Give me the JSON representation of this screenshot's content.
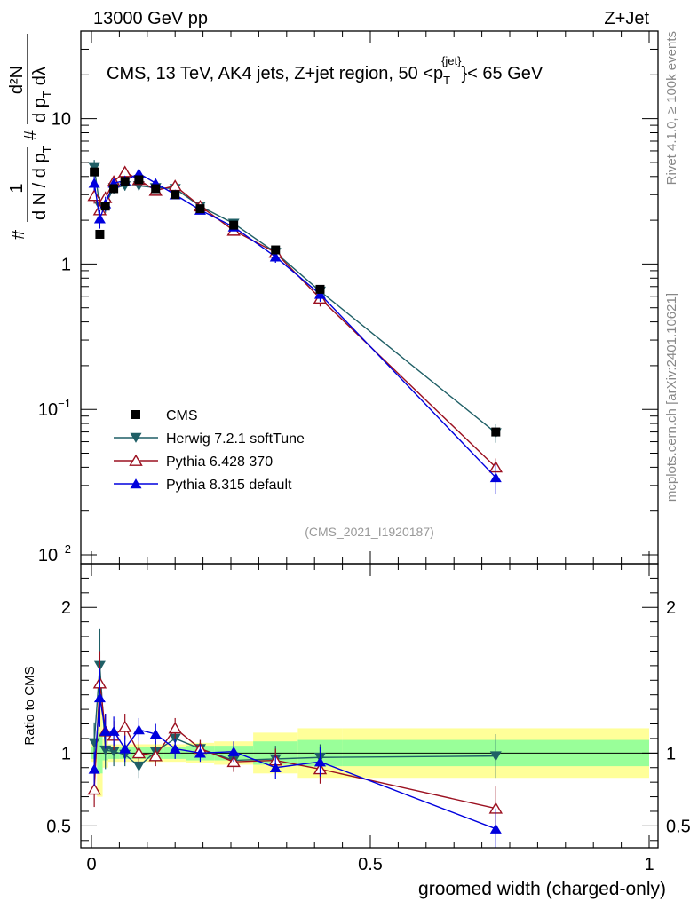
{
  "header": {
    "left": "13000 GeV pp",
    "right": "Z+Jet"
  },
  "side_labels": {
    "rivet": "Rivet 4.1.0, ≥ 100k events",
    "mcplots": "mcplots.cern.ch [arXiv:2401.10621]"
  },
  "colors": {
    "cms": "#000000",
    "herwig": "#1f5f66",
    "pythia6": "#9b1020",
    "pythia8": "#0000dd",
    "band_inner": "#99ff99",
    "band_outer": "#ffff99"
  },
  "chart_data": {
    "type": "line",
    "title": "CMS, 13 TeV, AK4 jets, Z+jet region, 50 <p_T^{jet}< 65 GeV",
    "title_parts": {
      "pre": "CMS, 13 TeV, AK4 jets, Z+jet region, 50 <p",
      "sup": "{jet}",
      "sub": "T",
      "post": "}< 65 GeV"
    },
    "ylabel_main": "1/dN/dpT # d2N/dpT dλ",
    "ylabel_parts": [
      "#",
      "1",
      "d N / d p",
      "T",
      "#",
      "d²N",
      "d p",
      "T",
      "dλ"
    ],
    "ylabel_ratio": "Ratio to CMS",
    "xlabel": "groomed width (charged-only)",
    "analysis_id": "(CMS_2021_I1920187)",
    "xlim": [
      0,
      1
    ],
    "ylim_main_log": [
      0.01,
      40
    ],
    "ylim_ratio": [
      0.35,
      2.3
    ],
    "x_ticks": [
      {
        "v": 0,
        "label": "0"
      },
      {
        "v": 0.5,
        "label": "0.5"
      },
      {
        "v": 1,
        "label": "1"
      }
    ],
    "y_ticks_main": [
      {
        "v": 10,
        "base": "10",
        "exp": ""
      },
      {
        "v": 1,
        "base": "1",
        "exp": ""
      },
      {
        "v": 0.1,
        "base": "10",
        "exp": "−1"
      },
      {
        "v": 0.01,
        "base": "10",
        "exp": "−2"
      }
    ],
    "y_ticks_ratio": [
      {
        "v": 2,
        "label": "2"
      },
      {
        "v": 1,
        "label": "1"
      },
      {
        "v": 0.5,
        "label": "0.5"
      }
    ],
    "legend": [
      {
        "key": "cms",
        "label": "CMS",
        "marker": "square"
      },
      {
        "key": "herwig",
        "label": "Herwig 7.2.1 softTune",
        "marker": "triangle-down"
      },
      {
        "key": "pythia6",
        "label": "Pythia 6.428 370",
        "marker": "triangle-open"
      },
      {
        "key": "pythia8",
        "label": "Pythia 8.315 default",
        "marker": "triangle-up"
      }
    ],
    "bins": [
      {
        "lo": 0.0,
        "hi": 0.01
      },
      {
        "lo": 0.01,
        "hi": 0.02
      },
      {
        "lo": 0.02,
        "hi": 0.03
      },
      {
        "lo": 0.03,
        "hi": 0.05
      },
      {
        "lo": 0.05,
        "hi": 0.07
      },
      {
        "lo": 0.07,
        "hi": 0.1
      },
      {
        "lo": 0.1,
        "hi": 0.13
      },
      {
        "lo": 0.13,
        "hi": 0.17
      },
      {
        "lo": 0.17,
        "hi": 0.22
      },
      {
        "lo": 0.22,
        "hi": 0.29
      },
      {
        "lo": 0.29,
        "hi": 0.37
      },
      {
        "lo": 0.37,
        "hi": 0.45
      },
      {
        "lo": 0.45,
        "hi": 1.0
      }
    ],
    "x": [
      0.005,
      0.015,
      0.025,
      0.04,
      0.06,
      0.085,
      0.115,
      0.15,
      0.195,
      0.255,
      0.33,
      0.41,
      0.725
    ],
    "cms": {
      "values": [
        4.3,
        1.6,
        2.5,
        3.3,
        3.7,
        3.8,
        3.3,
        3.0,
        2.4,
        1.85,
        1.25,
        0.67,
        0.07
      ],
      "err_inner": [
        0.04,
        0.14,
        0.05,
        0.04,
        0.04,
        0.04,
        0.04,
        0.04,
        0.05,
        0.05,
        0.08,
        0.09,
        0.09
      ],
      "err_outer": [
        0.06,
        0.3,
        0.1,
        0.06,
        0.06,
        0.06,
        0.06,
        0.06,
        0.07,
        0.08,
        0.14,
        0.17,
        0.17
      ]
    },
    "series": [
      {
        "key": "herwig",
        "name": "Herwig 7.2.1 softTune",
        "values": [
          4.6,
          2.5,
          2.55,
          3.35,
          3.45,
          3.45,
          3.35,
          3.3,
          2.5,
          1.9,
          1.2,
          0.65,
          0.069
        ],
        "errors": [
          0.6,
          0.4,
          0.3,
          0.3,
          0.25,
          0.25,
          0.2,
          0.2,
          0.15,
          0.12,
          0.1,
          0.06,
          0.01
        ],
        "ratio": [
          1.07,
          1.6,
          1.02,
          1.01,
          0.99,
          0.91,
          1.01,
          1.1,
          1.03,
          0.95,
          0.96,
          0.97,
          0.98
        ],
        "ratio_err": [
          0.14,
          0.25,
          0.13,
          0.1,
          0.08,
          0.08,
          0.07,
          0.07,
          0.06,
          0.07,
          0.09,
          0.09,
          0.15
        ]
      },
      {
        "key": "pythia6",
        "name": "Pythia 6.428 370",
        "values": [
          2.95,
          2.35,
          2.85,
          3.7,
          4.3,
          3.8,
          3.2,
          3.45,
          2.5,
          1.7,
          1.2,
          0.58,
          0.04
        ],
        "errors": [
          0.35,
          0.35,
          0.3,
          0.3,
          0.3,
          0.25,
          0.2,
          0.2,
          0.15,
          0.12,
          0.1,
          0.07,
          0.006
        ],
        "ratio": [
          0.75,
          1.48,
          1.15,
          1.12,
          1.18,
          1.0,
          0.98,
          1.17,
          1.03,
          0.94,
          0.95,
          0.89,
          0.62
        ],
        "ratio_err": [
          0.12,
          0.22,
          0.12,
          0.1,
          0.09,
          0.08,
          0.07,
          0.07,
          0.06,
          0.07,
          0.08,
          0.1,
          0.15
        ]
      },
      {
        "key": "pythia8",
        "name": "Pythia 8.315 default",
        "values": [
          3.6,
          2.05,
          2.6,
          3.6,
          3.75,
          4.2,
          3.6,
          3.0,
          2.35,
          1.8,
          1.12,
          0.62,
          0.034
        ],
        "errors": [
          0.4,
          0.3,
          0.3,
          0.3,
          0.25,
          0.25,
          0.2,
          0.2,
          0.15,
          0.12,
          0.1,
          0.07,
          0.008
        ],
        "ratio": [
          0.89,
          1.38,
          1.15,
          1.15,
          1.03,
          1.16,
          1.13,
          1.03,
          1.0,
          1.01,
          0.9,
          0.94,
          0.48
        ],
        "ratio_err": [
          0.12,
          0.2,
          0.12,
          0.1,
          0.09,
          0.08,
          0.07,
          0.07,
          0.06,
          0.07,
          0.08,
          0.1,
          0.14
        ]
      }
    ]
  }
}
